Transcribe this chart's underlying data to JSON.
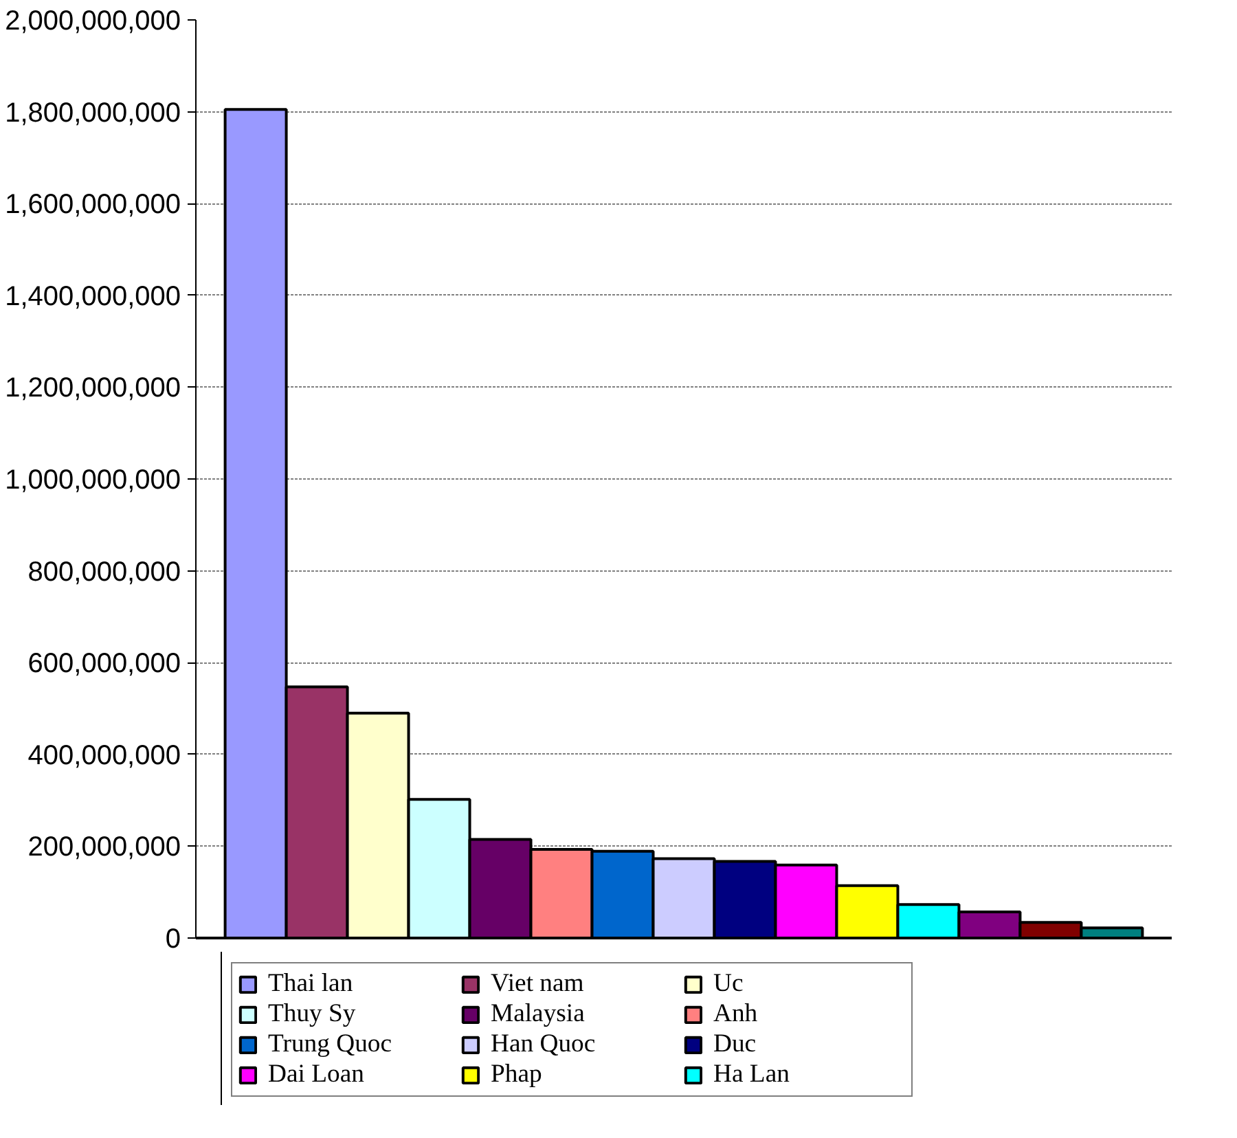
{
  "chart_data": {
    "type": "bar",
    "categories": [
      null
    ],
    "series": [
      {
        "name": "Thai lan",
        "color": "#9999ff",
        "values": [
          1805000000
        ]
      },
      {
        "name": "Viet nam",
        "color": "#993366",
        "values": [
          547000000
        ]
      },
      {
        "name": "Uc",
        "color": "#ffffcc",
        "values": [
          490000000
        ]
      },
      {
        "name": "Thuy Sy",
        "color": "#ccffff",
        "values": [
          302000000
        ]
      },
      {
        "name": "Malaysia",
        "color": "#660066",
        "values": [
          215000000
        ]
      },
      {
        "name": "Anh",
        "color": "#ff8080",
        "values": [
          193000000
        ]
      },
      {
        "name": "Trung Quoc",
        "color": "#0066cc",
        "values": [
          189000000
        ]
      },
      {
        "name": "Han Quoc",
        "color": "#ccccff",
        "values": [
          173000000
        ]
      },
      {
        "name": "Duc",
        "color": "#000080",
        "values": [
          167000000
        ]
      },
      {
        "name": "Dai Loan",
        "color": "#ff00ff",
        "values": [
          159000000
        ]
      },
      {
        "name": "Phap",
        "color": "#ffff00",
        "values": [
          114000000
        ]
      },
      {
        "name": "Ha Lan",
        "color": "#00ffff",
        "values": [
          73000000
        ]
      },
      {
        "color": "#800080",
        "values": [
          57000000
        ]
      },
      {
        "color": "#800000",
        "values": [
          34000000
        ]
      },
      {
        "color": "#008080",
        "values": [
          22000000
        ]
      }
    ],
    "ylim": [
      0,
      2000000000
    ],
    "yticks": [
      {
        "value": 0,
        "label": "0"
      },
      {
        "value": 200000000,
        "label": "200,000,000"
      },
      {
        "value": 400000000,
        "label": "400,000,000"
      },
      {
        "value": 600000000,
        "label": "600,000,000"
      },
      {
        "value": 800000000,
        "label": "800,000,000"
      },
      {
        "value": 1000000000,
        "label": "1,000,000,000"
      },
      {
        "value": 1200000000,
        "label": "1,200,000,000"
      },
      {
        "value": 1400000000,
        "label": "1,400,000,000"
      },
      {
        "value": 1600000000,
        "label": "1,600,000,000"
      },
      {
        "value": 1800000000,
        "label": "1,800,000,000"
      },
      {
        "value": 2000000000,
        "label": "2,000,000,000"
      }
    ],
    "grid": "y",
    "legend": "bottom"
  }
}
